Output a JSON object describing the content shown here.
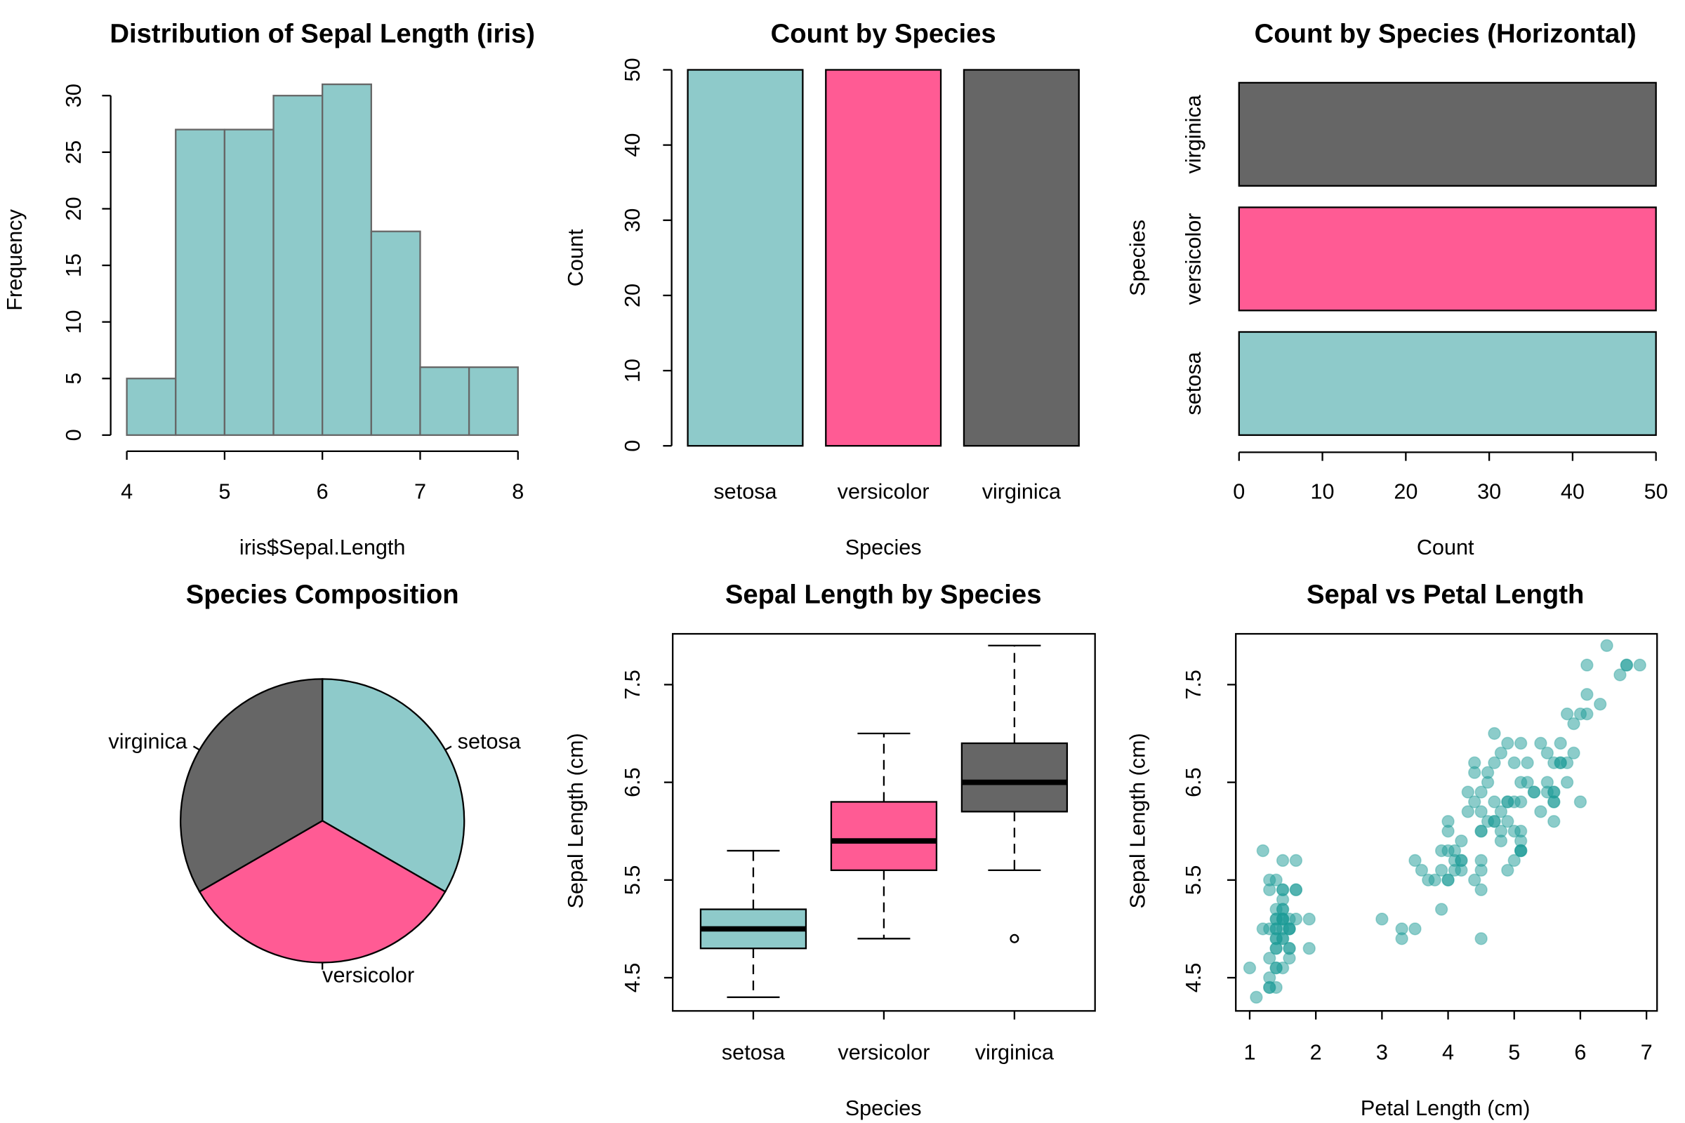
{
  "chart_data": [
    {
      "type": "histogram",
      "title": "Distribution of Sepal Length (iris)",
      "xlabel": "iris$Sepal.Length",
      "ylabel": "Frequency",
      "bins": [
        4,
        4.5,
        5,
        5.5,
        6,
        6.5,
        7,
        7.5,
        8
      ],
      "counts": [
        5,
        27,
        27,
        30,
        31,
        18,
        6,
        6
      ],
      "color": "#8ecaca",
      "edgecolor": "#666666",
      "xlim": [
        4,
        8
      ],
      "xticks": [
        4,
        5,
        6,
        7,
        8
      ],
      "ylim": [
        0,
        30
      ],
      "yticks": [
        0,
        5,
        10,
        15,
        20,
        25,
        30
      ]
    },
    {
      "type": "bar",
      "title": "Count by Species",
      "xlabel": "Species",
      "ylabel": "Count",
      "categories": [
        "setosa",
        "versicolor",
        "virginica"
      ],
      "values": [
        50,
        50,
        50
      ],
      "colors": [
        "#8ecaca",
        "#ff5b94",
        "#666666"
      ],
      "ylim": [
        0,
        50
      ],
      "yticks": [
        0,
        10,
        20,
        30,
        40,
        50
      ]
    },
    {
      "type": "barh",
      "title": "Count by Species (Horizontal)",
      "xlabel": "Count",
      "ylabel": "Species",
      "categories": [
        "setosa",
        "versicolor",
        "virginica"
      ],
      "values": [
        50,
        50,
        50
      ],
      "colors": [
        "#8ecaca",
        "#ff5b94",
        "#666666"
      ],
      "xlim": [
        0,
        50
      ],
      "xticks": [
        0,
        10,
        20,
        30,
        40,
        50
      ]
    },
    {
      "type": "pie",
      "title": "Species Composition",
      "labels": [
        "setosa",
        "versicolor",
        "virginica"
      ],
      "values": [
        50,
        50,
        50
      ],
      "colors": [
        "#8ecaca",
        "#ff5b94",
        "#666666"
      ]
    },
    {
      "type": "box",
      "title": "Sepal Length by Species",
      "xlabel": "Species",
      "ylabel": "Sepal Length (cm)",
      "categories": [
        "setosa",
        "versicolor",
        "virginica"
      ],
      "colors": [
        "#8ecaca",
        "#ff5b94",
        "#666666"
      ],
      "boxes": [
        {
          "min": 4.3,
          "q1": 4.8,
          "median": 5.0,
          "q3": 5.2,
          "max": 5.8,
          "outliers": []
        },
        {
          "min": 4.9,
          "q1": 5.6,
          "median": 5.9,
          "q3": 6.3,
          "max": 7.0,
          "outliers": []
        },
        {
          "min": 5.6,
          "q1": 6.2,
          "median": 6.5,
          "q3": 6.9,
          "max": 7.9,
          "outliers": [
            4.9
          ]
        }
      ],
      "ylim": [
        4.16,
        8.02
      ],
      "yticks": [
        4.5,
        5.5,
        6.5,
        7.5
      ]
    },
    {
      "type": "scatter",
      "title": "Sepal vs Petal Length",
      "xlabel": "Petal Length (cm)",
      "ylabel": "Sepal Length (cm)",
      "color": "#1a9a96",
      "x": [
        1.4,
        1.4,
        1.3,
        1.5,
        1.4,
        1.7,
        1.4,
        1.5,
        1.4,
        1.5,
        1.5,
        1.6,
        1.4,
        1.1,
        1.2,
        1.5,
        1.3,
        1.4,
        1.7,
        1.5,
        1.7,
        1.5,
        1.0,
        1.7,
        1.9,
        1.6,
        1.6,
        1.5,
        1.4,
        1.6,
        1.6,
        1.5,
        1.5,
        1.4,
        1.5,
        1.2,
        1.3,
        1.4,
        1.3,
        1.5,
        1.3,
        1.3,
        1.3,
        1.6,
        1.9,
        1.4,
        1.6,
        1.4,
        1.5,
        1.4,
        4.7,
        4.5,
        4.9,
        4.0,
        4.6,
        4.5,
        4.7,
        3.3,
        4.6,
        3.9,
        3.5,
        4.2,
        4.0,
        4.7,
        3.6,
        4.4,
        4.5,
        4.1,
        4.5,
        3.9,
        4.8,
        4.0,
        4.9,
        4.7,
        4.3,
        4.4,
        4.8,
        5.0,
        4.5,
        3.5,
        3.8,
        3.7,
        3.9,
        5.1,
        4.5,
        4.5,
        4.7,
        4.4,
        4.1,
        4.0,
        4.4,
        4.6,
        4.0,
        3.3,
        4.2,
        4.2,
        4.2,
        4.3,
        3.0,
        4.1,
        6.0,
        5.1,
        5.9,
        5.6,
        5.8,
        6.6,
        4.5,
        6.3,
        5.8,
        6.1,
        5.1,
        5.3,
        5.5,
        5.0,
        5.1,
        5.3,
        5.5,
        6.7,
        6.9,
        5.0,
        5.7,
        4.9,
        6.7,
        4.9,
        5.7,
        6.0,
        4.8,
        4.9,
        5.6,
        5.8,
        6.1,
        6.4,
        5.6,
        5.1,
        5.6,
        6.1,
        5.6,
        5.5,
        4.8,
        5.4,
        5.6,
        5.1,
        5.1,
        5.9,
        5.7,
        5.2,
        5.0,
        5.2,
        5.4,
        5.1
      ],
      "y": [
        5.1,
        4.9,
        4.7,
        4.6,
        5.0,
        5.4,
        4.6,
        5.0,
        4.4,
        4.9,
        5.4,
        4.8,
        4.8,
        4.3,
        5.8,
        5.7,
        5.4,
        5.1,
        5.7,
        5.1,
        5.4,
        5.1,
        4.6,
        5.1,
        4.8,
        5.0,
        5.0,
        5.2,
        5.2,
        4.7,
        4.8,
        5.4,
        5.2,
        5.5,
        4.9,
        5.0,
        5.5,
        4.9,
        4.4,
        5.1,
        5.0,
        4.5,
        4.4,
        5.0,
        5.1,
        4.8,
        5.1,
        4.6,
        5.3,
        5.0,
        7.0,
        6.4,
        6.9,
        5.5,
        6.5,
        5.7,
        6.3,
        4.9,
        6.6,
        5.2,
        5.0,
        5.9,
        6.0,
        6.1,
        5.6,
        6.7,
        5.6,
        5.8,
        6.2,
        5.6,
        5.9,
        6.1,
        6.3,
        6.1,
        6.4,
        6.6,
        6.8,
        6.7,
        6.0,
        5.7,
        5.5,
        5.5,
        5.8,
        6.0,
        5.4,
        6.0,
        6.7,
        6.3,
        5.6,
        5.5,
        5.5,
        6.1,
        5.8,
        5.0,
        5.6,
        5.7,
        5.7,
        6.2,
        5.1,
        5.7,
        6.3,
        5.8,
        7.1,
        6.3,
        6.5,
        7.6,
        4.9,
        7.3,
        6.7,
        7.2,
        6.5,
        6.4,
        6.8,
        5.7,
        5.8,
        6.4,
        6.5,
        7.7,
        7.7,
        6.0,
        6.9,
        5.6,
        7.7,
        6.3,
        6.7,
        7.2,
        6.2,
        6.1,
        6.4,
        7.2,
        7.4,
        7.9,
        6.4,
        6.3,
        6.1,
        7.7,
        6.3,
        6.4,
        6.0,
        6.9,
        6.7,
        6.9,
        5.8,
        6.8,
        6.7,
        6.7,
        6.3,
        6.5,
        6.2,
        5.9
      ],
      "xlim": [
        0.79,
        7.16
      ],
      "xticks": [
        1,
        2,
        3,
        4,
        5,
        6,
        7
      ],
      "ylim": [
        4.16,
        8.02
      ],
      "yticks": [
        4.5,
        5.5,
        6.5,
        7.5
      ]
    }
  ]
}
